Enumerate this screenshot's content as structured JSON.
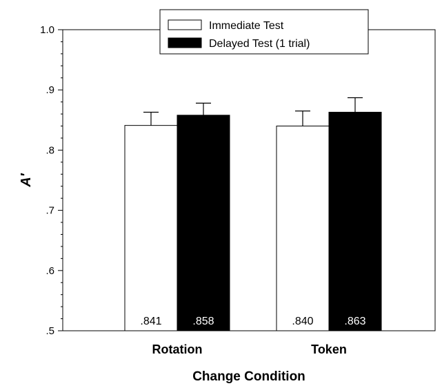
{
  "chart_data": {
    "type": "bar",
    "title": "",
    "xlabel": "Change Condition",
    "ylabel": "A′",
    "ylim": [
      0.5,
      1.0
    ],
    "yticks": [
      0.5,
      0.6,
      0.7,
      0.8,
      0.9,
      1.0
    ],
    "ytick_labels": [
      ".5",
      ".6",
      ".7",
      ".8",
      ".9",
      "1.0"
    ],
    "categories": [
      "Rotation",
      "Token"
    ],
    "series": [
      {
        "name": "Immediate Test",
        "color": "#ffffff",
        "values": [
          0.841,
          0.84
        ],
        "value_labels": [
          ".841",
          ".840"
        ],
        "error": [
          0.022,
          0.025
        ]
      },
      {
        "name": "Delayed Test (1 trial)",
        "color": "#000000",
        "values": [
          0.858,
          0.863
        ],
        "value_labels": [
          ".858",
          ".863"
        ],
        "error": [
          0.02,
          0.024
        ]
      }
    ],
    "legend_position": "top-center",
    "grid": false
  }
}
